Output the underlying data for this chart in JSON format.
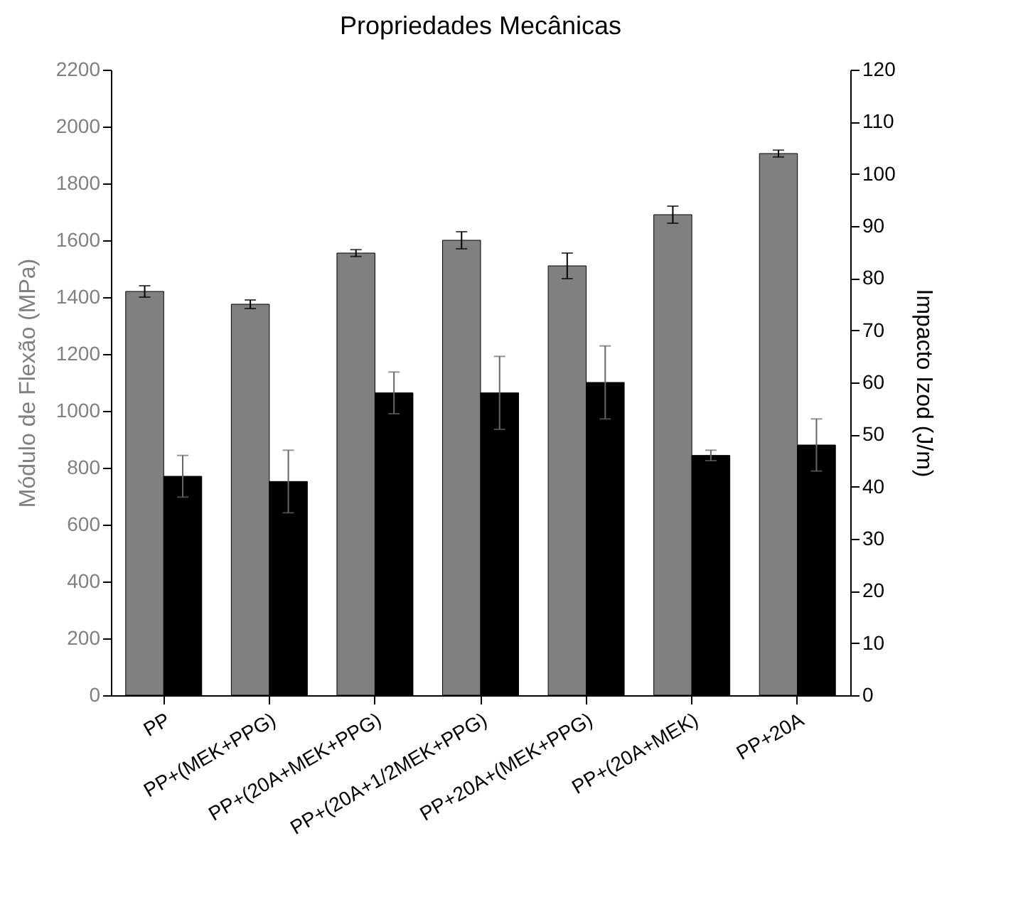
{
  "chart_data": {
    "type": "bar",
    "title": "Propriedades Mecânicas",
    "ylabel": "Módulo de Flexão (MPa)",
    "y2label": "Impacto Izod (J/m)",
    "categories": [
      "PP",
      "PP+(MEK+PPG)",
      "PP+(20A+MEK+PPG)",
      "PP+(20A+1/2MEK+PPG)",
      "PP+20A+(MEK+PPG)",
      "PP+(20A+MEK)",
      "PP+20A"
    ],
    "series": [
      {
        "color": "#808080",
        "values": [
          1420,
          1375,
          1555,
          1600,
          1510,
          1690,
          1905
        ],
        "errors": [
          20,
          15,
          12,
          30,
          45,
          30,
          12
        ]
      },
      {
        "color": "#000000",
        "axis": "y2",
        "values": [
          42,
          41,
          58,
          58,
          60,
          46,
          48
        ],
        "errors": [
          4,
          6,
          4,
          7,
          7,
          1,
          5
        ]
      }
    ],
    "ylim": [
      0,
      2200
    ],
    "yticks": [
      0,
      200,
      400,
      600,
      800,
      1000,
      1200,
      1400,
      1600,
      1800,
      2000,
      2200
    ],
    "y2lim": [
      0,
      120
    ],
    "y2ticks": [
      0,
      10,
      20,
      30,
      40,
      50,
      60,
      70,
      80,
      90,
      100,
      110,
      120
    ],
    "grid": false
  }
}
